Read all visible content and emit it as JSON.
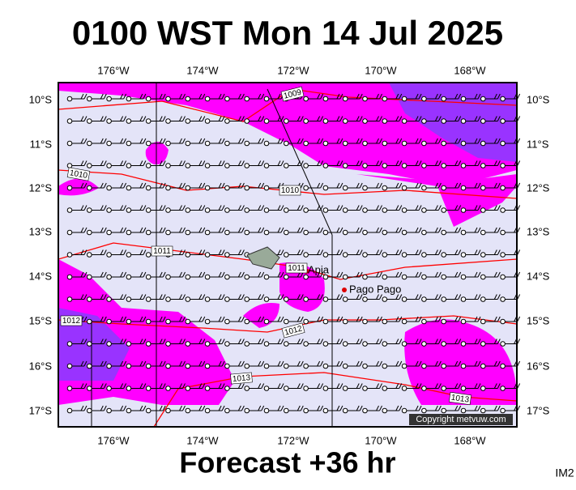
{
  "header": {
    "title": "0100 WST Mon 14 Jul 2025"
  },
  "map": {
    "longitudes": [
      "176°W",
      "174°W",
      "172°W",
      "170°W",
      "168°W"
    ],
    "latitudes": [
      "10°S",
      "11°S",
      "12°S",
      "13°S",
      "14°S",
      "15°S",
      "16°S",
      "17°S"
    ],
    "isobar_labels": [
      "1009",
      "1010",
      "1010",
      "1011",
      "1011",
      "1012",
      "1012",
      "1013",
      "1013"
    ],
    "places": [
      "Apia",
      "Pago Pago"
    ],
    "copyright": "Copyright metvuw.com"
  },
  "footer": {
    "forecast": "Forecast +36 hr",
    "image_id": "IM2"
  }
}
